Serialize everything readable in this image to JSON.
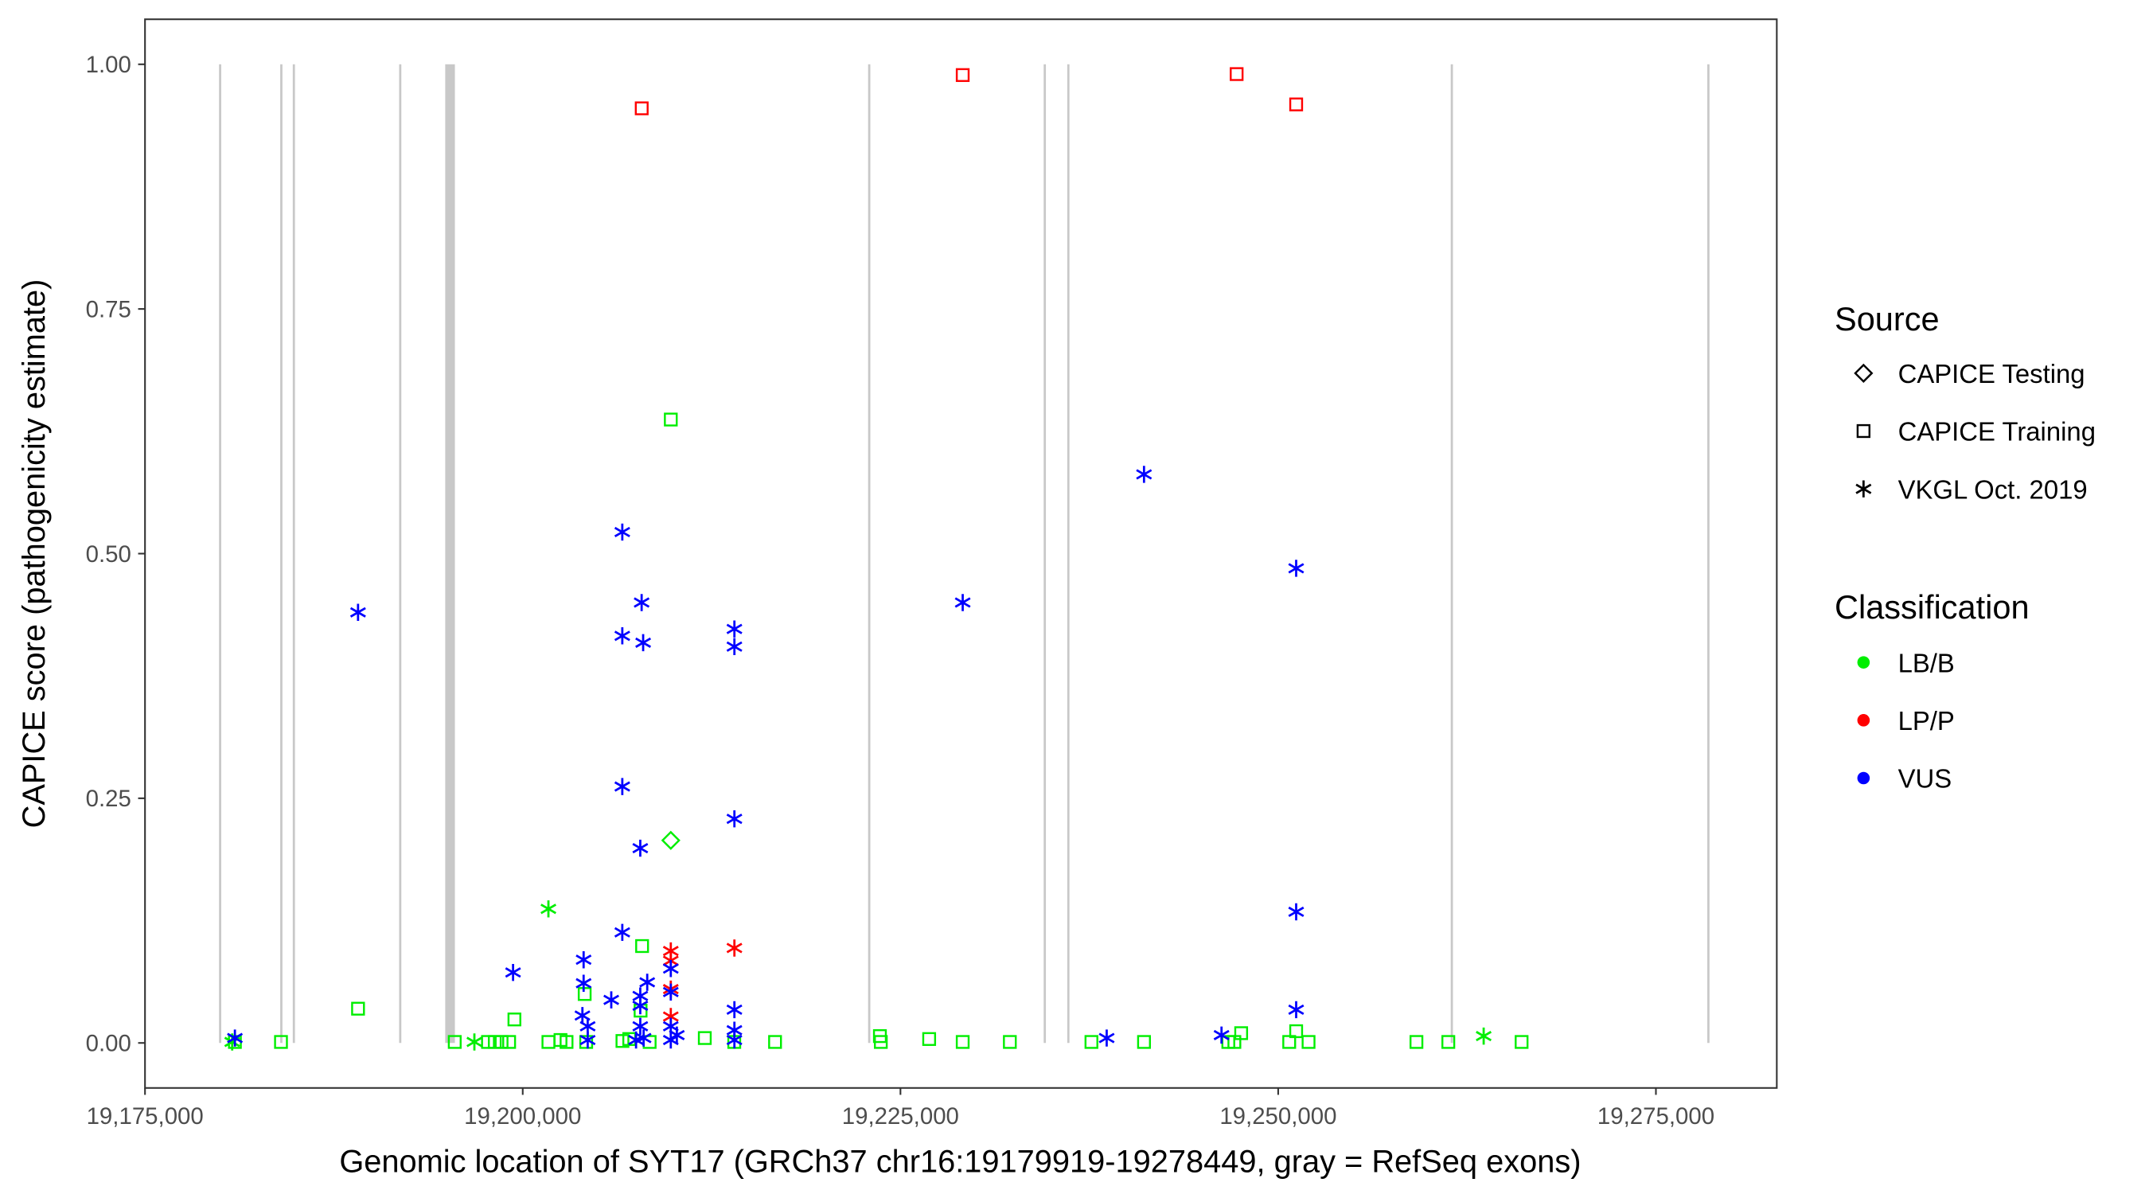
{
  "chart_data": {
    "type": "scatter",
    "xlabel": "Genomic location of SYT17 (GRCh37 chr16:19179919-19278449, gray = RefSeq exons)",
    "ylabel": "CAPICE score (pathogenicity estimate)",
    "xlim": [
      19175000,
      19283000
    ],
    "ylim": [
      -0.046,
      1.046
    ],
    "x_ticks": [
      19175000,
      19200000,
      19225000,
      19250000,
      19275000
    ],
    "x_tick_labels": [
      "19,175,000",
      "19,200,000",
      "19,225,000",
      "19,250,000",
      "19,275,000"
    ],
    "y_ticks": [
      0,
      0.25,
      0.5,
      0.75,
      1.0
    ],
    "y_tick_labels": [
      "0.00",
      "0.25",
      "0.50",
      "0.75",
      "1.00"
    ],
    "grid": false,
    "exons": [
      [
        19179900,
        19180000
      ],
      [
        19183950,
        19184020
      ],
      [
        19184780,
        19184850
      ],
      [
        19191820,
        19191900
      ],
      [
        19194870,
        19195510
      ],
      [
        19222860,
        19222930
      ],
      [
        19234480,
        19234560
      ],
      [
        19236040,
        19236120
      ],
      [
        19261420,
        19261490
      ],
      [
        19278400,
        19278500
      ]
    ],
    "legend": {
      "placement": "right",
      "source_title": "Source",
      "source_items": [
        {
          "label": "CAPICE Testing",
          "shape": "diamond"
        },
        {
          "label": "CAPICE Training",
          "shape": "square"
        },
        {
          "label": "VKGL Oct. 2019",
          "shape": "asterisk"
        }
      ],
      "class_title": "Classification",
      "class_items": [
        {
          "label": "LB/B",
          "color": "#00ee00"
        },
        {
          "label": "LP/P",
          "color": "#ff0000"
        },
        {
          "label": "VUS",
          "color": "#0000ff"
        }
      ]
    },
    "series": [
      {
        "source": "CAPICE Training",
        "class": "LP/P",
        "points": [
          [
            19207875,
            0.955
          ],
          [
            19229120,
            0.989
          ],
          [
            19247250,
            0.99
          ],
          [
            19251190,
            0.959
          ]
        ]
      },
      {
        "source": "CAPICE Testing",
        "class": "LB/B",
        "points": [
          [
            19209800,
            0.207
          ]
        ]
      },
      {
        "source": "CAPICE Training",
        "class": "LB/B",
        "points": [
          [
            19209800,
            0.637
          ],
          [
            19189100,
            0.035
          ],
          [
            19199450,
            0.024
          ],
          [
            19204100,
            0.05
          ],
          [
            19207900,
            0.099
          ],
          [
            19207800,
            0.033
          ],
          [
            19180950,
            0.001
          ],
          [
            19184000,
            0.001
          ],
          [
            19195500,
            0.001
          ],
          [
            19197700,
            0.001
          ],
          [
            19198150,
            0.001
          ],
          [
            19198600,
            0.001
          ],
          [
            19199100,
            0.001
          ],
          [
            19201700,
            0.001
          ],
          [
            19202500,
            0.003
          ],
          [
            19202900,
            0.001
          ],
          [
            19204200,
            0.001
          ],
          [
            19206600,
            0.002
          ],
          [
            19207050,
            0.004
          ],
          [
            19208400,
            0.001
          ],
          [
            19212050,
            0.005
          ],
          [
            19214000,
            0.001
          ],
          [
            19216700,
            0.001
          ],
          [
            19223640,
            0.007
          ],
          [
            19223700,
            0.001
          ],
          [
            19226900,
            0.004
          ],
          [
            19229120,
            0.001
          ],
          [
            19232240,
            0.001
          ],
          [
            19237640,
            0.001
          ],
          [
            19241120,
            0.001
          ],
          [
            19246700,
            0.001
          ],
          [
            19247100,
            0.001
          ],
          [
            19247550,
            0.01
          ],
          [
            19250730,
            0.001
          ],
          [
            19251190,
            0.012
          ],
          [
            19252010,
            0.001
          ],
          [
            19259150,
            0.001
          ],
          [
            19261260,
            0.001
          ],
          [
            19266110,
            0.001
          ]
        ]
      },
      {
        "source": "VKGL Oct. 2019",
        "class": "LB/B",
        "points": [
          [
            19201700,
            0.137
          ],
          [
            19196800,
            0.001
          ],
          [
            19180770,
            0.001
          ],
          [
            19263600,
            0.007
          ]
        ]
      },
      {
        "source": "VKGL Oct. 2019",
        "class": "LP/P",
        "points": [
          [
            19209800,
            0.094
          ],
          [
            19209800,
            0.084
          ],
          [
            19209800,
            0.055
          ],
          [
            19209800,
            0.027
          ],
          [
            19214010,
            0.097
          ]
        ]
      },
      {
        "source": "VKGL Oct. 2019",
        "class": "VUS",
        "points": [
          [
            19180950,
            0.005
          ],
          [
            19189100,
            0.44
          ],
          [
            19206590,
            0.522
          ],
          [
            19207870,
            0.45
          ],
          [
            19206590,
            0.416
          ],
          [
            19207970,
            0.409
          ],
          [
            19214010,
            0.423
          ],
          [
            19214010,
            0.405
          ],
          [
            19206590,
            0.262
          ],
          [
            19207780,
            0.199
          ],
          [
            19214010,
            0.229
          ],
          [
            19229120,
            0.45
          ],
          [
            19241120,
            0.581
          ],
          [
            19251190,
            0.485
          ],
          [
            19251190,
            0.134
          ],
          [
            19251190,
            0.034
          ],
          [
            19238650,
            0.005
          ],
          [
            19246250,
            0.008
          ],
          [
            19199360,
            0.072
          ],
          [
            19204030,
            0.085
          ],
          [
            19204030,
            0.061
          ],
          [
            19205860,
            0.044
          ],
          [
            19206590,
            0.113
          ],
          [
            19203950,
            0.028
          ],
          [
            19204300,
            0.017
          ],
          [
            19204300,
            0.003
          ],
          [
            19207780,
            0.048
          ],
          [
            19207780,
            0.038
          ],
          [
            19208240,
            0.062
          ],
          [
            19207780,
            0.017
          ],
          [
            19207500,
            0.003
          ],
          [
            19209800,
            0.076
          ],
          [
            19209800,
            0.052
          ],
          [
            19209800,
            0.017
          ],
          [
            19209800,
            0.003
          ],
          [
            19214010,
            0.034
          ],
          [
            19214010,
            0.013
          ],
          [
            19214010,
            0.003
          ],
          [
            19210200,
            0.008
          ],
          [
            19208000,
            0.005
          ]
        ]
      }
    ]
  }
}
